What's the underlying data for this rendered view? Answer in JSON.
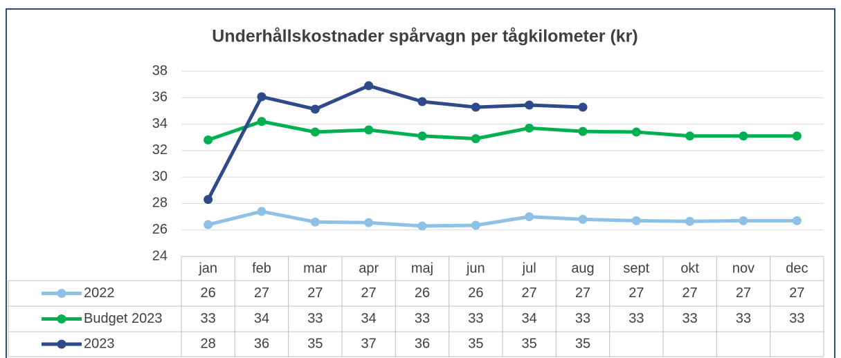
{
  "chart_data": {
    "type": "line",
    "title": "Underhållskostnader spårvagn per tågkilometer (kr)",
    "categories": [
      "jan",
      "feb",
      "mar",
      "apr",
      "maj",
      "jun",
      "jul",
      "aug",
      "sept",
      "okt",
      "nov",
      "dec"
    ],
    "series": [
      {
        "name": "2022",
        "color": "#8fc1e6",
        "values": [
          26.4,
          27.4,
          26.6,
          26.55,
          26.3,
          26.35,
          27.0,
          26.8,
          26.7,
          26.65,
          26.7,
          26.7
        ],
        "value_labels": [
          "26",
          "27",
          "27",
          "27",
          "26",
          "26",
          "27",
          "27",
          "27",
          "27",
          "27",
          "27"
        ]
      },
      {
        "name": "Budget 2023",
        "color": "#00b050",
        "values": [
          32.8,
          34.2,
          33.4,
          33.56,
          33.1,
          32.9,
          33.7,
          33.45,
          33.4,
          33.1,
          33.1,
          33.1
        ],
        "value_labels": [
          "33",
          "34",
          "33",
          "34",
          "33",
          "33",
          "34",
          "33",
          "33",
          "33",
          "33",
          "33"
        ]
      },
      {
        "name": "2023",
        "color": "#2e4a8a",
        "values": [
          28.3,
          36.07,
          35.13,
          36.9,
          35.7,
          35.28,
          35.44,
          35.28,
          null,
          null,
          null,
          null
        ],
        "value_labels": [
          "28",
          "36",
          "35",
          "37",
          "36",
          "35",
          "35",
          "35",
          null,
          null,
          null,
          null
        ]
      }
    ],
    "ylim": [
      24,
      38
    ],
    "yticks": [
      24,
      26,
      28,
      30,
      32,
      34,
      36,
      38
    ],
    "grid": true
  }
}
